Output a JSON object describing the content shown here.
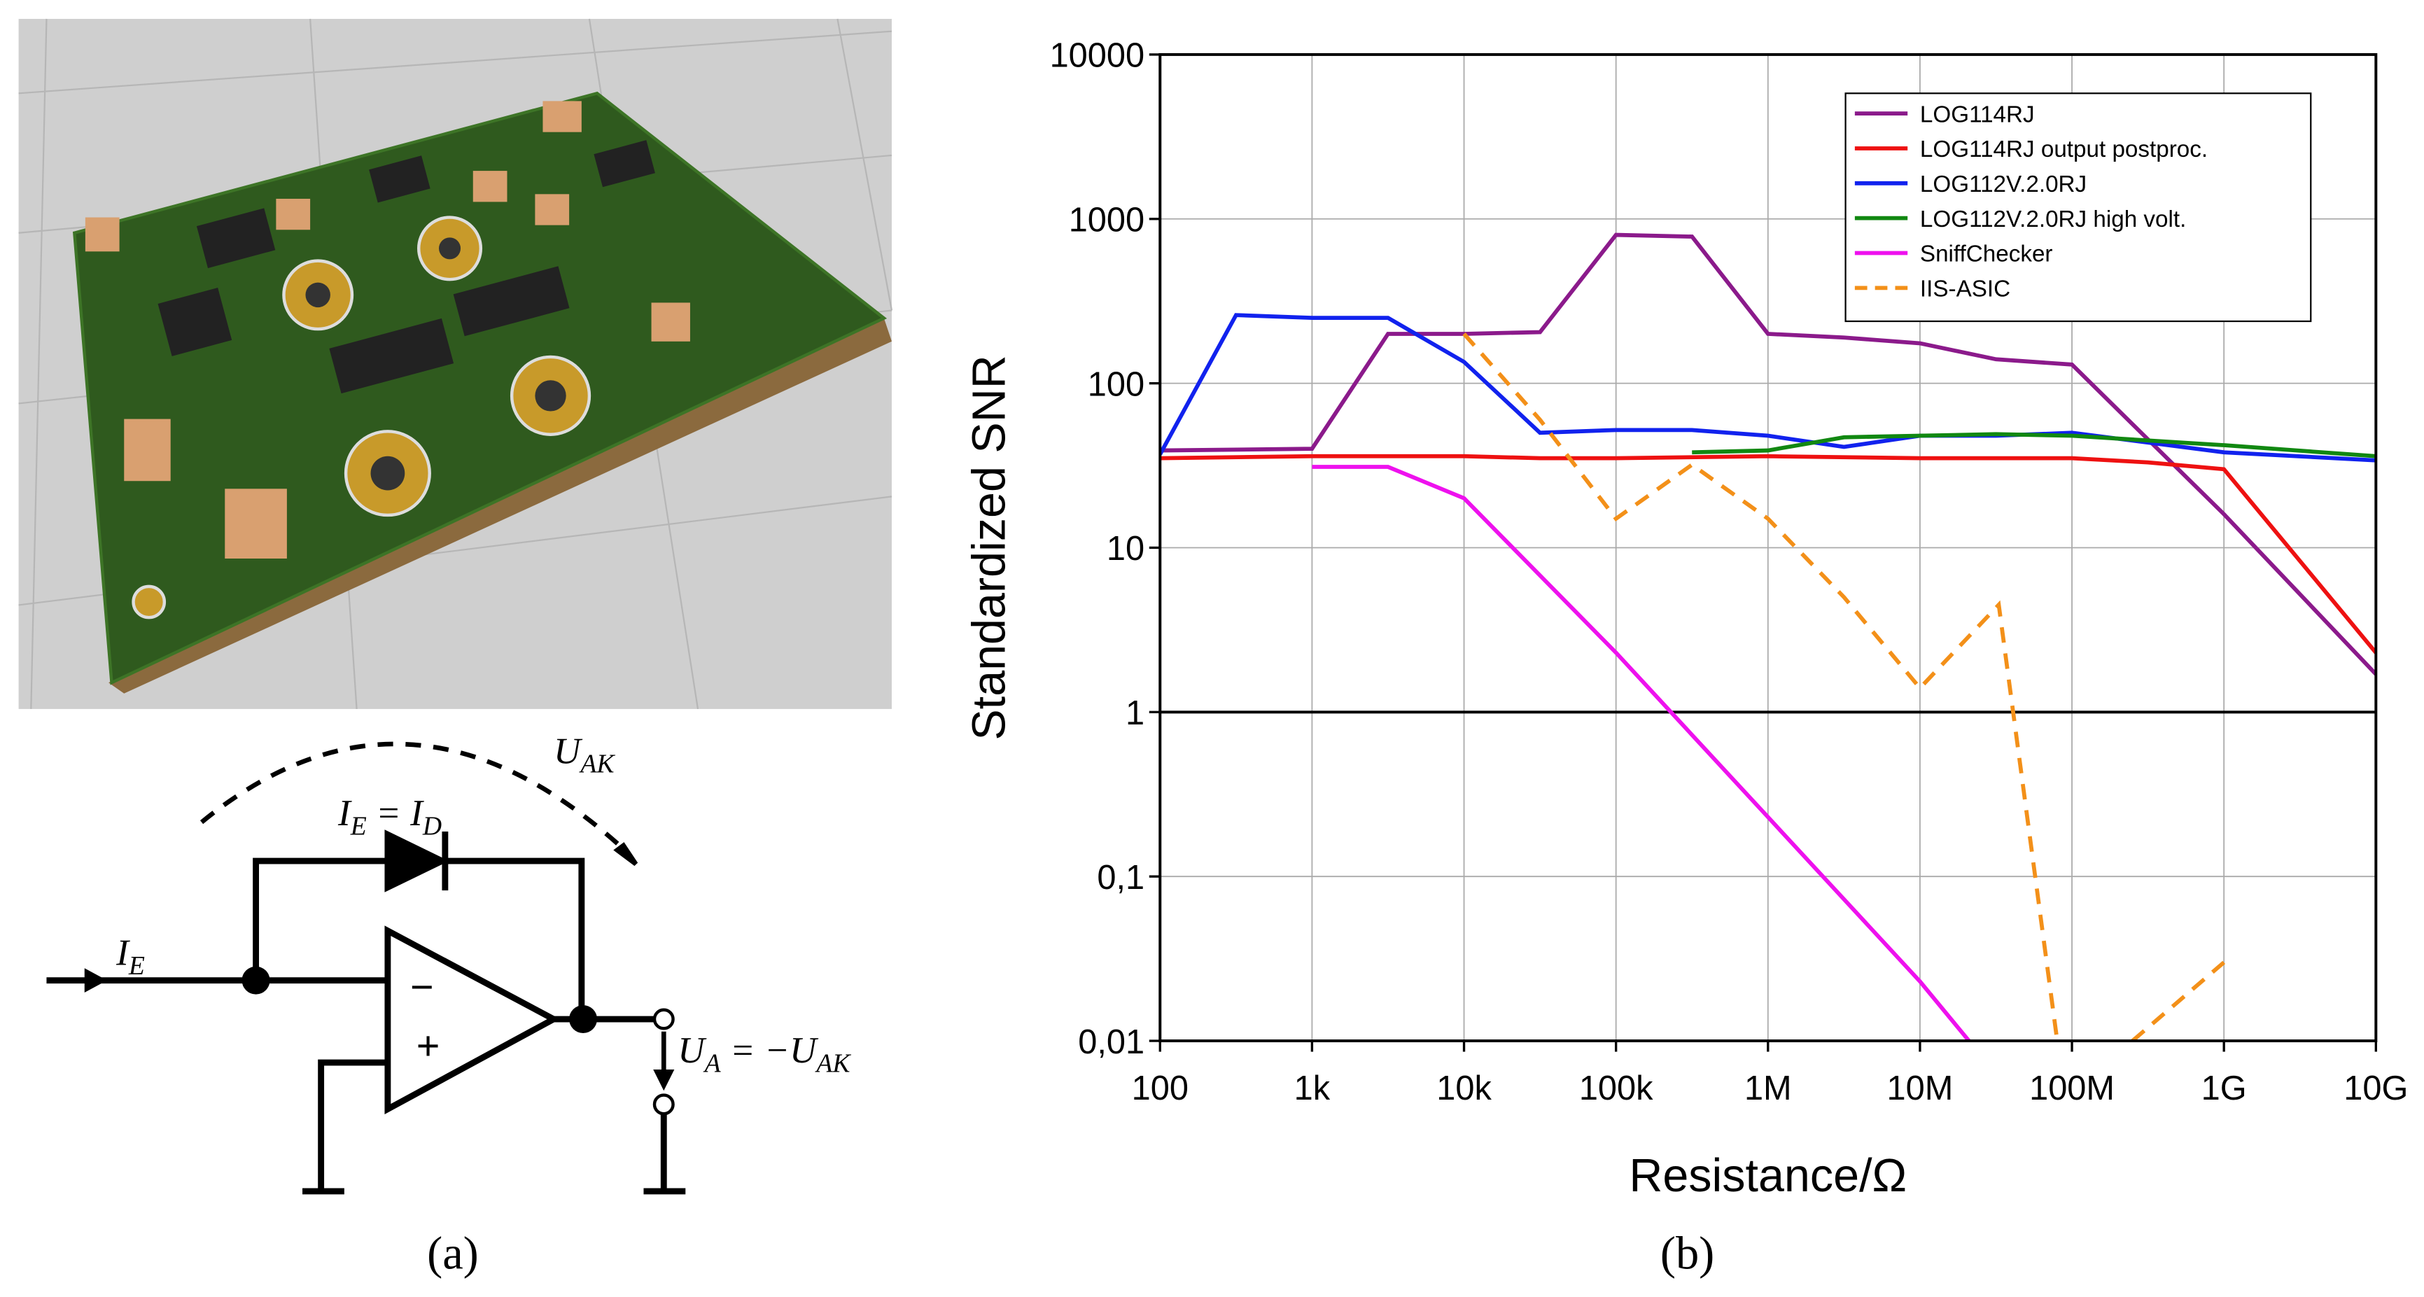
{
  "circuit": {
    "labels": [
      [
        "U",
        "AK"
      ],
      [
        "I",
        "E",
        " = I",
        "D"
      ],
      [
        "I",
        "E"
      ],
      [
        "U",
        "A",
        " = −U",
        "AK"
      ]
    ],
    "opamp_inputs": [
      "−",
      "+"
    ]
  },
  "panel_labels": [
    "(a)",
    "(b)"
  ],
  "chart_data": {
    "type": "line",
    "x_label": "Resistance/Ω",
    "y_label": "Standardized SNR",
    "xlog": true,
    "ylog": true,
    "grid": true,
    "legend": "upper right",
    "reference_line": 1,
    "xlim": [
      100,
      10000000000
    ],
    "ylim": [
      0.01,
      10000
    ],
    "xticks": [
      100,
      {
        "value": 1000,
        "label": "1k"
      },
      {
        "value": 10000,
        "label": "10k"
      },
      {
        "value": 100000,
        "label": "100k"
      },
      {
        "value": 1000000,
        "label": "1M"
      },
      {
        "value": 10000000,
        "label": "10M"
      },
      {
        "value": 100000000,
        "label": "100M"
      },
      {
        "value": 1000000000,
        "label": "1G"
      },
      {
        "value": 10000000000,
        "label": "10G"
      }
    ],
    "yticks": [
      {
        "value": 0.01,
        "label": "0,01"
      },
      {
        "value": 0.1,
        "label": "0,1"
      },
      1,
      10,
      100,
      1000,
      10000
    ],
    "series": [
      {
        "name": "LOG114RJ",
        "color": "#8b1a8b",
        "x": [
          100,
          1000,
          3160,
          10000,
          31600,
          100000,
          316000,
          1000000,
          3160000,
          10000000,
          31600000,
          100000000,
          1000000000,
          10000000000
        ],
        "values": [
          39,
          40,
          200,
          200,
          205,
          800,
          780,
          200,
          190,
          175,
          140,
          130,
          16,
          1.7
        ]
      },
      {
        "name": "LOG114RJ output postproc.",
        "color": "#ee1111",
        "x": [
          100,
          1000,
          10000,
          31600,
          100000,
          1000000,
          10000000,
          100000000,
          316000000,
          1000000000,
          10000000000
        ],
        "values": [
          35,
          36,
          36,
          35,
          35,
          36,
          35,
          35,
          33,
          30,
          2.3
        ]
      },
      {
        "name": "LOG112V.2.0RJ",
        "color": "#1122ee",
        "x": [
          100,
          316,
          1000,
          3160,
          10000,
          31600,
          100000,
          316000,
          1000000,
          3160000,
          10000000,
          31600000,
          100000000,
          1000000000,
          10000000000
        ],
        "values": [
          37,
          260,
          250,
          250,
          135,
          50,
          52,
          52,
          48,
          41,
          48,
          48,
          50,
          38,
          34
        ]
      },
      {
        "name": "LOG112V.2.0RJ high volt.",
        "color": "#118811",
        "x": [
          316000,
          1000000,
          3160000,
          10000000,
          31600000,
          100000000,
          1000000000,
          10000000000
        ],
        "values": [
          38,
          39,
          47,
          48,
          49,
          48,
          42,
          36
        ]
      },
      {
        "name": "SniffChecker",
        "color": "#ee11ee",
        "x": [
          1000,
          3160,
          10000,
          100000,
          1000000,
          10000000,
          21000000
        ],
        "values": [
          31,
          31,
          20,
          2.3,
          0.23,
          0.023,
          0.01
        ]
      },
      {
        "name": "IIS-ASIC",
        "color": "#f39019",
        "dash": true,
        "x": [
          10000,
          31600,
          100000,
          316000,
          1000000,
          3160000,
          10000000,
          33000000,
          80000000,
          null,
          250000000,
          1000000000
        ],
        "values": [
          200,
          60,
          15,
          32,
          15,
          5,
          1.4,
          4.5,
          0.01,
          null,
          0.01,
          0.03
        ]
      }
    ]
  }
}
